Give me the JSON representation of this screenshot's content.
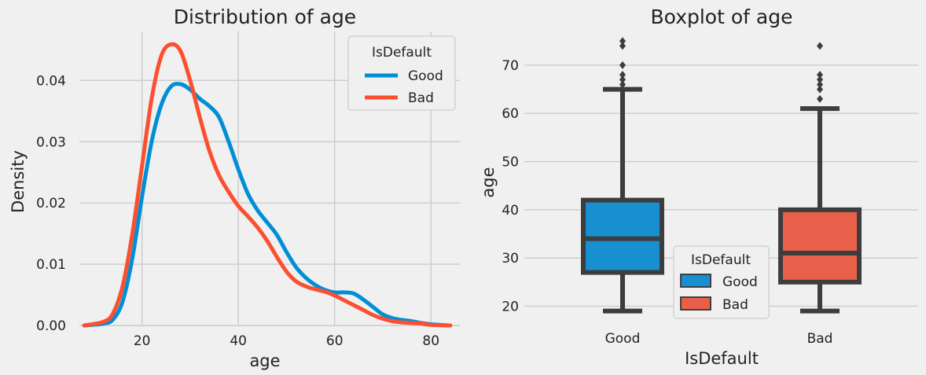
{
  "chart_data": [
    {
      "type": "line",
      "title": "Distribution of age",
      "xlabel": "age",
      "ylabel": "Density",
      "xlim": [
        7,
        86
      ],
      "ylim": [
        0,
        0.048
      ],
      "xticks": [
        "20",
        "40",
        "60",
        "80"
      ],
      "yticks": [
        "0.00",
        "0.01",
        "0.02",
        "0.03",
        "0.04"
      ],
      "grid": true,
      "legend": {
        "title": "IsDefault",
        "placement": "top-right"
      },
      "series": [
        {
          "name": "Good",
          "color": "#008fd5",
          "points": [
            [
              8,
              0
            ],
            [
              12,
              0.0003
            ],
            [
              14,
              0.001
            ],
            [
              16,
              0.004
            ],
            [
              18,
              0.011
            ],
            [
              20,
              0.021
            ],
            [
              22,
              0.03
            ],
            [
              24,
              0.036
            ],
            [
              26,
              0.039
            ],
            [
              28,
              0.0394
            ],
            [
              30,
              0.0385
            ],
            [
              32,
              0.037
            ],
            [
              34,
              0.0358
            ],
            [
              36,
              0.034
            ],
            [
              38,
              0.03
            ],
            [
              40,
              0.0255
            ],
            [
              42,
              0.0215
            ],
            [
              44,
              0.0188
            ],
            [
              46,
              0.0168
            ],
            [
              48,
              0.0148
            ],
            [
              50,
              0.012
            ],
            [
              52,
              0.0095
            ],
            [
              54,
              0.0078
            ],
            [
              56,
              0.0066
            ],
            [
              58,
              0.0058
            ],
            [
              60,
              0.0054
            ],
            [
              62,
              0.0054
            ],
            [
              64,
              0.0052
            ],
            [
              66,
              0.0042
            ],
            [
              68,
              0.003
            ],
            [
              70,
              0.0018
            ],
            [
              72,
              0.0012
            ],
            [
              74,
              0.0009
            ],
            [
              76,
              0.0007
            ],
            [
              78,
              0.0004
            ],
            [
              80,
              0.0002
            ],
            [
              84,
              0
            ]
          ]
        },
        {
          "name": "Bad",
          "color": "#fc4f30",
          "points": [
            [
              8,
              0
            ],
            [
              12,
              0.0006
            ],
            [
              14,
              0.002
            ],
            [
              16,
              0.0065
            ],
            [
              18,
              0.015
            ],
            [
              20,
              0.026
            ],
            [
              22,
              0.037
            ],
            [
              24,
              0.044
            ],
            [
              26,
              0.0459
            ],
            [
              28,
              0.0448
            ],
            [
              30,
              0.04
            ],
            [
              32,
              0.034
            ],
            [
              34,
              0.0285
            ],
            [
              36,
              0.0245
            ],
            [
              38,
              0.0218
            ],
            [
              40,
              0.0195
            ],
            [
              42,
              0.0178
            ],
            [
              44,
              0.016
            ],
            [
              46,
              0.0138
            ],
            [
              48,
              0.0112
            ],
            [
              50,
              0.0088
            ],
            [
              52,
              0.0072
            ],
            [
              54,
              0.0064
            ],
            [
              56,
              0.0059
            ],
            [
              58,
              0.0055
            ],
            [
              60,
              0.0049
            ],
            [
              62,
              0.0041
            ],
            [
              64,
              0.0033
            ],
            [
              66,
              0.0025
            ],
            [
              68,
              0.0017
            ],
            [
              70,
              0.0011
            ],
            [
              72,
              0.0007
            ],
            [
              74,
              0.0005
            ],
            [
              76,
              0.0004
            ],
            [
              78,
              0.0003
            ],
            [
              80,
              0.0001
            ],
            [
              84,
              0
            ]
          ]
        }
      ]
    },
    {
      "type": "box",
      "title": "Boxplot of age",
      "xlabel": "IsDefault",
      "ylabel": "age",
      "categories": [
        "Good",
        "Bad"
      ],
      "ylim": [
        16,
        77
      ],
      "yticks": [
        "20",
        "30",
        "40",
        "50",
        "60",
        "70"
      ],
      "grid": true,
      "legend": {
        "title": "IsDefault",
        "placement": "lower-center"
      },
      "boxes": [
        {
          "name": "Good",
          "color": "#188fd0",
          "min": 19,
          "q1": 27,
          "median": 34,
          "q3": 42,
          "max": 65,
          "outliers": [
            66,
            67,
            68,
            70,
            74,
            75
          ]
        },
        {
          "name": "Bad",
          "color": "#e8604a",
          "min": 19,
          "q1": 25,
          "median": 31,
          "q3": 40,
          "max": 61,
          "outliers": [
            63,
            65,
            66,
            67,
            68,
            74
          ]
        }
      ]
    }
  ]
}
